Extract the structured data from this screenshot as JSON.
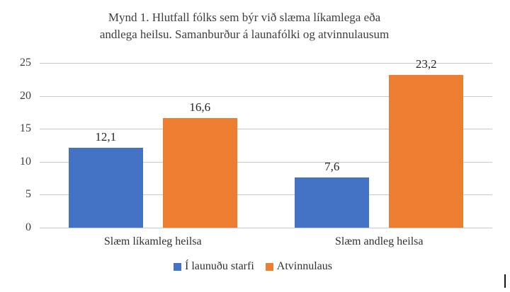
{
  "title": {
    "line1": "Mynd 1. Hlutfall fólks sem býr við slæma líkamlega eða",
    "line2": "andlega heilsu. Samanburður á launafólki og atvinnulausum"
  },
  "chart_data": {
    "type": "bar",
    "title": "Mynd 1. Hlutfall fólks sem býr við slæma líkamlega eða andlega heilsu. Samanburður á launafólki og atvinnulausum",
    "categories": [
      "Slæm líkamleg heilsa",
      "Slæm andleg heilsa"
    ],
    "series": [
      {
        "name": "Í launuðu starfi",
        "color": "#4472C4",
        "values": [
          12.1,
          7.6
        ],
        "value_labels": [
          "12,1",
          "7,6"
        ]
      },
      {
        "name": "Atvinnulaus",
        "color": "#ED7D31",
        "values": [
          16.6,
          23.2
        ],
        "value_labels": [
          "16,6",
          "23,2"
        ]
      }
    ],
    "xlabel": "",
    "ylabel": "",
    "y_axis": {
      "min": 0,
      "max": 25,
      "ticks": [
        0,
        5,
        10,
        15,
        20,
        25
      ],
      "tick_labels": [
        "0",
        "5",
        "10",
        "15",
        "20",
        "25"
      ]
    },
    "grid": "horizontal",
    "legend_position": "bottom",
    "colors": {
      "grid_line": "#C9C9C9",
      "axis_text": "#3D3D3D",
      "label_text": "#262626",
      "background": "#FFFFFF"
    }
  }
}
